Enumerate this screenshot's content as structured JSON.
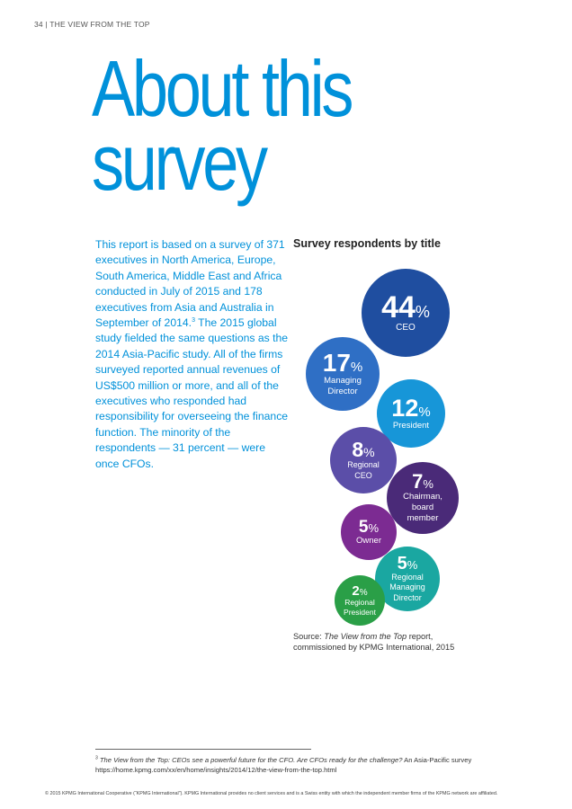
{
  "header": {
    "running_head": "34 | THE VIEW FROM THE TOP"
  },
  "title": {
    "line1": "About this",
    "line2": "survey"
  },
  "body": {
    "before_ref": "This report is based on a survey of 371 executives in North America, Europe, South America, Middle East and Africa conducted in July of 2015 and 178 executives from Asia and Australia in September of 2014.",
    "ref": "3",
    "after_ref": " The 2015 global study fielded the same questions as the 2014 Asia-Pacific study. All of the firms surveyed reported annual revenues of US$500 million or more, and all of the executives who responded had responsibility for overseeing the finance function. The minority of the respondents — 31 percent — were once CFOs."
  },
  "chart": {
    "title": "Survey respondents by title",
    "percent_symbol": "%",
    "bubbles": [
      {
        "value": "44",
        "label_lines": [
          "CEO"
        ],
        "color": "#1f4ea0"
      },
      {
        "value": "17",
        "label_lines": [
          "Managing",
          "Director"
        ],
        "color": "#2f6fc5"
      },
      {
        "value": "12",
        "label_lines": [
          "President"
        ],
        "color": "#1796d8"
      },
      {
        "value": "8",
        "label_lines": [
          "Regional",
          "CEO"
        ],
        "color": "#5b4ea8"
      },
      {
        "value": "7",
        "label_lines": [
          "Chairman,",
          "board",
          "member"
        ],
        "color": "#4a2a78"
      },
      {
        "value": "5",
        "label_lines": [
          "Owner"
        ],
        "color": "#7c2b92"
      },
      {
        "value": "5",
        "label_lines": [
          "Regional",
          "Managing",
          "Director"
        ],
        "color": "#1aa7a1"
      },
      {
        "value": "2",
        "label_lines": [
          "Regional",
          "President"
        ],
        "color": "#2a9f47"
      }
    ]
  },
  "chart_data": {
    "type": "bubble",
    "title": "Survey respondents by title",
    "unit": "%",
    "categories": [
      "CEO",
      "Managing Director",
      "President",
      "Regional CEO",
      "Chairman, board member",
      "Owner",
      "Regional Managing Director",
      "Regional President"
    ],
    "values": [
      44,
      17,
      12,
      8,
      7,
      5,
      5,
      2
    ]
  },
  "source": {
    "prefix": "Source: ",
    "title": "The View from the Top",
    "suffix": " report, commissioned by KPMG International, 2015"
  },
  "footnote": {
    "ref": "3",
    "title": "The View from the Top: CEOs see a powerful future for the CFO. Are CFOs ready for the challenge?",
    "rest": " An Asia-Pacific survey",
    "url": "https://home.kpmg.com/xx/en/home/insights/2014/12/the-view-from-the-top.html"
  },
  "copyright": "© 2015 KPMG International Cooperative (“KPMG International”). KPMG International provides no client services and is a Swiss entity with which the independent member firms of the KPMG network are affiliated."
}
